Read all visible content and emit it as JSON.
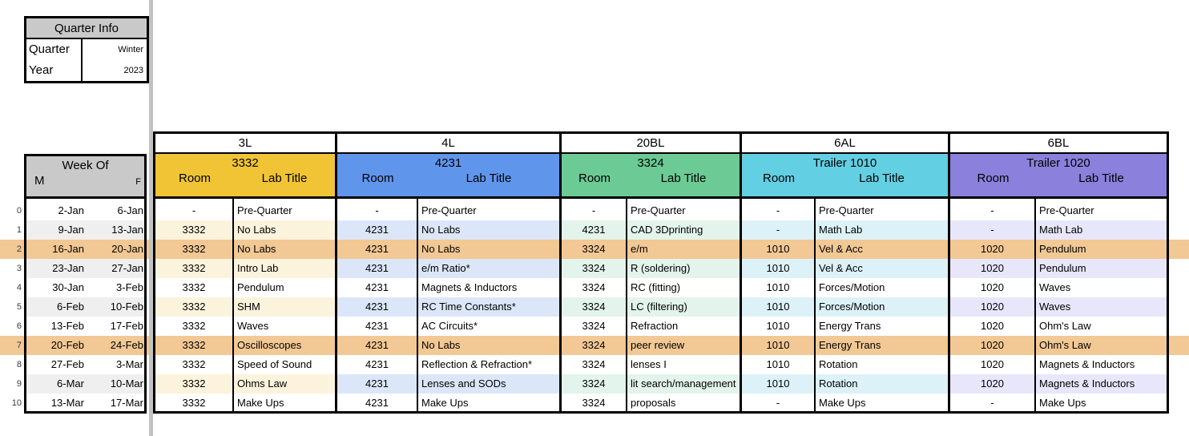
{
  "quarter_info": {
    "title": "Quarter Info",
    "quarter_label": "Quarter",
    "quarter_value": "Winter",
    "year_label": "Year",
    "year_value": "2023"
  },
  "week_header": {
    "title": "Week Of",
    "monday_label": "M",
    "friday_label": "F"
  },
  "sections": [
    {
      "code": "3L",
      "room_name": "3332",
      "room_col_label": "Room",
      "lab_col_label": "Lab Title",
      "header_color": "#F0C434",
      "tint_color": "#FCF3DC"
    },
    {
      "code": "4L",
      "room_name": "4231",
      "room_col_label": "Room",
      "lab_col_label": "Lab Title",
      "header_color": "#6095EC",
      "tint_color": "#DBE7F9"
    },
    {
      "code": "20BL",
      "room_name": "3324",
      "room_col_label": "Room",
      "lab_col_label": "Lab Title",
      "header_color": "#6CCA95",
      "tint_color": "#E2F4EB"
    },
    {
      "code": "6AL",
      "room_name": "Trailer 1010",
      "room_col_label": "Room",
      "lab_col_label": "Lab Title",
      "header_color": "#62CFE2",
      "tint_color": "#DCF2F8"
    },
    {
      "code": "6BL",
      "room_name": "Trailer 1020",
      "room_col_label": "Room",
      "lab_col_label": "Lab Title",
      "header_color": "#8B80DB",
      "tint_color": "#E8E6FB"
    }
  ],
  "rows": [
    {
      "num": "0",
      "monday": "2-Jan",
      "friday": "6-Jan",
      "highlight": false,
      "cells": [
        {
          "room": "-",
          "lab": "Pre-Quarter"
        },
        {
          "room": "-",
          "lab": "Pre-Quarter"
        },
        {
          "room": "-",
          "lab": "Pre-Quarter"
        },
        {
          "room": "-",
          "lab": "Pre-Quarter"
        },
        {
          "room": "-",
          "lab": "Pre-Quarter"
        }
      ]
    },
    {
      "num": "1",
      "monday": "9-Jan",
      "friday": "13-Jan",
      "highlight": false,
      "cells": [
        {
          "room": "3332",
          "lab": "No Labs"
        },
        {
          "room": "4231",
          "lab": "No Labs"
        },
        {
          "room": "4231",
          "lab": "CAD 3Dprinting"
        },
        {
          "room": "-",
          "lab": "Math Lab"
        },
        {
          "room": "-",
          "lab": "Math Lab"
        }
      ]
    },
    {
      "num": "2",
      "monday": "16-Jan",
      "friday": "20-Jan",
      "highlight": true,
      "cells": [
        {
          "room": "3332",
          "lab": "No Labs"
        },
        {
          "room": "4231",
          "lab": "No Labs"
        },
        {
          "room": "3324",
          "lab": "e/m"
        },
        {
          "room": "1010",
          "lab": "Vel & Acc"
        },
        {
          "room": "1020",
          "lab": "Pendulum"
        }
      ]
    },
    {
      "num": "3",
      "monday": "23-Jan",
      "friday": "27-Jan",
      "highlight": false,
      "cells": [
        {
          "room": "3332",
          "lab": "Intro Lab"
        },
        {
          "room": "4231",
          "lab": "e/m Ratio*"
        },
        {
          "room": "3324",
          "lab": "R (soldering)"
        },
        {
          "room": "1010",
          "lab": "Vel & Acc"
        },
        {
          "room": "1020",
          "lab": "Pendulum"
        }
      ]
    },
    {
      "num": "4",
      "monday": "30-Jan",
      "friday": "3-Feb",
      "highlight": false,
      "cells": [
        {
          "room": "3332",
          "lab": "Pendulum"
        },
        {
          "room": "4231",
          "lab": "Magnets & Inductors"
        },
        {
          "room": "3324",
          "lab": "RC (fitting)"
        },
        {
          "room": "1010",
          "lab": "Forces/Motion"
        },
        {
          "room": "1020",
          "lab": "Waves"
        }
      ]
    },
    {
      "num": "5",
      "monday": "6-Feb",
      "friday": "10-Feb",
      "highlight": false,
      "cells": [
        {
          "room": "3332",
          "lab": "SHM"
        },
        {
          "room": "4231",
          "lab": "RC Time Constants*"
        },
        {
          "room": "3324",
          "lab": "LC (filtering)"
        },
        {
          "room": "1010",
          "lab": "Forces/Motion"
        },
        {
          "room": "1020",
          "lab": "Waves"
        }
      ]
    },
    {
      "num": "6",
      "monday": "13-Feb",
      "friday": "17-Feb",
      "highlight": false,
      "cells": [
        {
          "room": "3332",
          "lab": "Waves"
        },
        {
          "room": "4231",
          "lab": "AC Circuits*"
        },
        {
          "room": "3324",
          "lab": "Refraction"
        },
        {
          "room": "1010",
          "lab": "Energy Trans"
        },
        {
          "room": "1020",
          "lab": "Ohm's Law"
        }
      ]
    },
    {
      "num": "7",
      "monday": "20-Feb",
      "friday": "24-Feb",
      "highlight": true,
      "cells": [
        {
          "room": "3332",
          "lab": "Oscilloscopes"
        },
        {
          "room": "4231",
          "lab": "No Labs"
        },
        {
          "room": "3324",
          "lab": "peer review"
        },
        {
          "room": "1010",
          "lab": "Energy Trans"
        },
        {
          "room": "1020",
          "lab": "Ohm's Law"
        }
      ]
    },
    {
      "num": "8",
      "monday": "27-Feb",
      "friday": "3-Mar",
      "highlight": false,
      "cells": [
        {
          "room": "3332",
          "lab": "Speed of Sound"
        },
        {
          "room": "4231",
          "lab": "Reflection & Refraction*"
        },
        {
          "room": "3324",
          "lab": "lenses I"
        },
        {
          "room": "1010",
          "lab": "Rotation"
        },
        {
          "room": "1020",
          "lab": "Magnets & Inductors"
        }
      ]
    },
    {
      "num": "9",
      "monday": "6-Mar",
      "friday": "10-Mar",
      "highlight": false,
      "cells": [
        {
          "room": "3332",
          "lab": "Ohms Law"
        },
        {
          "room": "4231",
          "lab": "Lenses and SODs"
        },
        {
          "room": "3324",
          "lab": "lit search/management"
        },
        {
          "room": "1010",
          "lab": "Rotation"
        },
        {
          "room": "1020",
          "lab": "Magnets & Inductors"
        }
      ]
    },
    {
      "num": "10",
      "monday": "13-Mar",
      "friday": "17-Mar",
      "highlight": false,
      "cells": [
        {
          "room": "3332",
          "lab": "Make Ups"
        },
        {
          "room": "4231",
          "lab": "Make Ups"
        },
        {
          "room": "3324",
          "lab": "proposals"
        },
        {
          "room": "-",
          "lab": "Make Ups"
        },
        {
          "room": "-",
          "lab": "Make Ups"
        }
      ]
    }
  ],
  "colors": {
    "header_gray": "#C9C9C9",
    "highlight_orange": "#F2C894",
    "week_tint": "#EFEFEF"
  }
}
